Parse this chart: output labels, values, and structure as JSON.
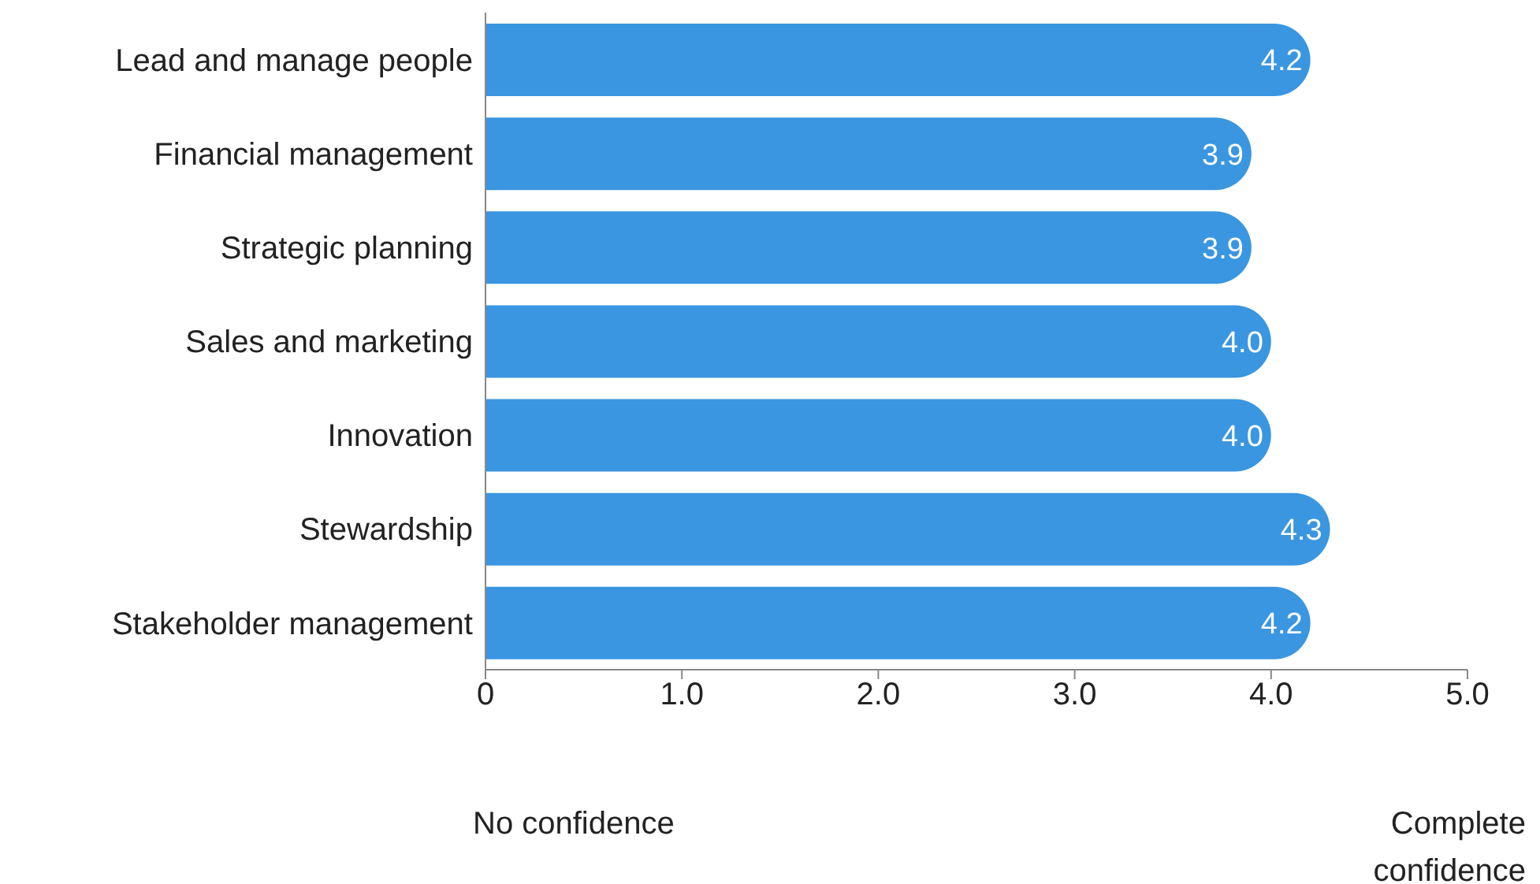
{
  "chart_data": {
    "type": "bar",
    "orientation": "horizontal",
    "categories": [
      "Lead and manage people",
      "Financial management",
      "Strategic planning",
      "Sales and marketing",
      "Innovation",
      "Stewardship",
      "Stakeholder management"
    ],
    "values": [
      4.2,
      3.9,
      3.9,
      4.0,
      4.0,
      4.3,
      4.2
    ],
    "value_labels": [
      "4.2",
      "3.9",
      "3.9",
      "4.0",
      "4.0",
      "4.3",
      "4.2"
    ],
    "color": "#3a96e0",
    "xlim": [
      0,
      5
    ],
    "xticks": [
      0,
      {
        "value": 1,
        "label": "1.0"
      },
      {
        "value": 2,
        "label": "2.0"
      },
      {
        "value": 3,
        "label": "3.0"
      },
      {
        "value": 4,
        "label": "4.0"
      },
      {
        "value": 5,
        "label": "5.0"
      }
    ],
    "grid": false,
    "legend": false,
    "annotations": [
      "No confidence",
      "Complete confidence"
    ]
  }
}
